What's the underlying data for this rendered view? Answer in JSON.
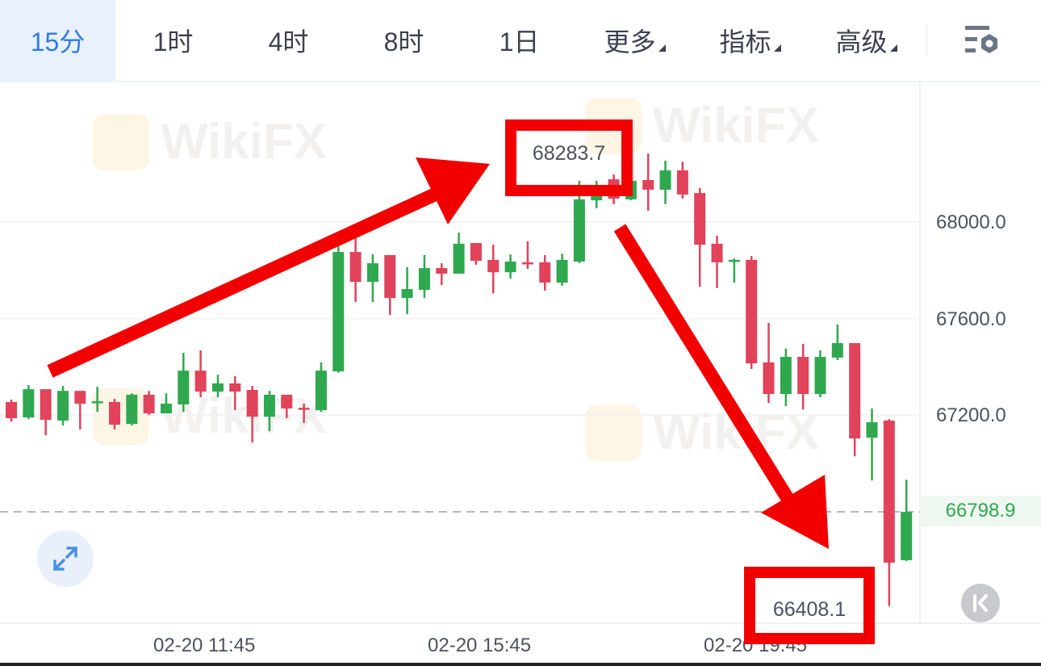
{
  "toolbar": {
    "tabs": [
      {
        "label": "15分",
        "active": true
      },
      {
        "label": "1时"
      },
      {
        "label": "4时"
      },
      {
        "label": "8时"
      },
      {
        "label": "1日"
      },
      {
        "label": "更多",
        "dropdown": true
      },
      {
        "label": "指标",
        "dropdown": true
      },
      {
        "label": "高级",
        "dropdown": true
      }
    ],
    "settings_icon": "chart-settings-icon"
  },
  "colors": {
    "up": "#2fa84f",
    "down": "#e0435a",
    "accent": "#2f7be6",
    "annotation": "#f20000"
  },
  "watermark": "WikiFX",
  "annotations": {
    "high_label": "68283.7",
    "low_label": "66408.1"
  },
  "buttons": {
    "expand_icon": "expand-arrows-icon",
    "back_icon": "jump-to-latest-icon"
  },
  "chart_data": {
    "type": "candlestick",
    "interval": "15分",
    "yaxis_ticks": [
      "68000.0",
      "67600.0",
      "67200.0"
    ],
    "last_price": "66798.9",
    "xaxis_ticks": [
      "02-20 11:45",
      "02-20 15:45",
      "02-20 19:45"
    ],
    "ylim": [
      66337,
      68579
    ],
    "grid": true,
    "candles": [
      [
        67254,
        67264,
        67173,
        67187
      ],
      [
        67190,
        67324,
        67183,
        67307
      ],
      [
        67307,
        67307,
        67116,
        67180
      ],
      [
        67177,
        67321,
        67157,
        67300
      ],
      [
        67300,
        67300,
        67140,
        67247
      ],
      [
        67254,
        67317,
        67213,
        67257
      ],
      [
        67254,
        67267,
        67140,
        67160
      ],
      [
        67163,
        67290,
        67157,
        67284
      ],
      [
        67284,
        67300,
        67200,
        67207
      ],
      [
        67207,
        67290,
        67207,
        67247
      ],
      [
        67244,
        67458,
        67213,
        67384
      ],
      [
        67384,
        67468,
        67274,
        67297
      ],
      [
        67297,
        67367,
        67274,
        67331
      ],
      [
        67331,
        67361,
        67220,
        67297
      ],
      [
        67304,
        67321,
        67086,
        67193
      ],
      [
        67193,
        67300,
        67133,
        67284
      ],
      [
        67284,
        67284,
        67187,
        67227
      ],
      [
        67230,
        67247,
        67167,
        67227
      ],
      [
        67220,
        67418,
        67213,
        67384
      ],
      [
        67381,
        67916,
        67375,
        67876
      ],
      [
        67876,
        67953,
        67669,
        67752
      ],
      [
        67752,
        67866,
        67669,
        67829
      ],
      [
        67863,
        67863,
        67615,
        67685
      ],
      [
        67685,
        67813,
        67618,
        67722
      ],
      [
        67719,
        67863,
        67685,
        67809
      ],
      [
        67809,
        67829,
        67739,
        67786
      ],
      [
        67786,
        67956,
        67786,
        67910
      ],
      [
        67913,
        67913,
        67823,
        67839
      ],
      [
        67843,
        67906,
        67705,
        67792
      ],
      [
        67792,
        67866,
        67766,
        67836
      ],
      [
        67833,
        67920,
        67806,
        67826
      ],
      [
        67833,
        67863,
        67716,
        67749
      ],
      [
        67749,
        67869,
        67736,
        67843
      ],
      [
        67836,
        68171,
        67830,
        68094
      ],
      [
        68090,
        68171,
        68057,
        68117
      ],
      [
        68177,
        68197,
        68074,
        68097
      ],
      [
        68094,
        68171,
        68090,
        68171
      ],
      [
        68174,
        68283.7,
        68047,
        68134
      ],
      [
        68134,
        68254,
        68074,
        68214
      ],
      [
        68214,
        68250,
        68097,
        68114
      ],
      [
        68120,
        68141,
        67732,
        67906
      ],
      [
        67910,
        67943,
        67726,
        67833
      ],
      [
        67839,
        67849,
        67749,
        67843
      ],
      [
        67843,
        67859,
        67391,
        67414
      ],
      [
        67418,
        67582,
        67250,
        67287
      ],
      [
        67287,
        67475,
        67237,
        67441
      ],
      [
        67441,
        67495,
        67223,
        67287
      ],
      [
        67287,
        67468,
        67274,
        67441
      ],
      [
        67438,
        67575,
        67428,
        67498
      ],
      [
        67498,
        67498,
        67029,
        67103
      ],
      [
        67106,
        67227,
        66929,
        67170
      ],
      [
        67177,
        67183,
        66408.1,
        66588
      ],
      [
        66598,
        66932,
        66595,
        66798.9
      ]
    ],
    "candle_format": [
      "open",
      "high",
      "low",
      "close"
    ]
  }
}
